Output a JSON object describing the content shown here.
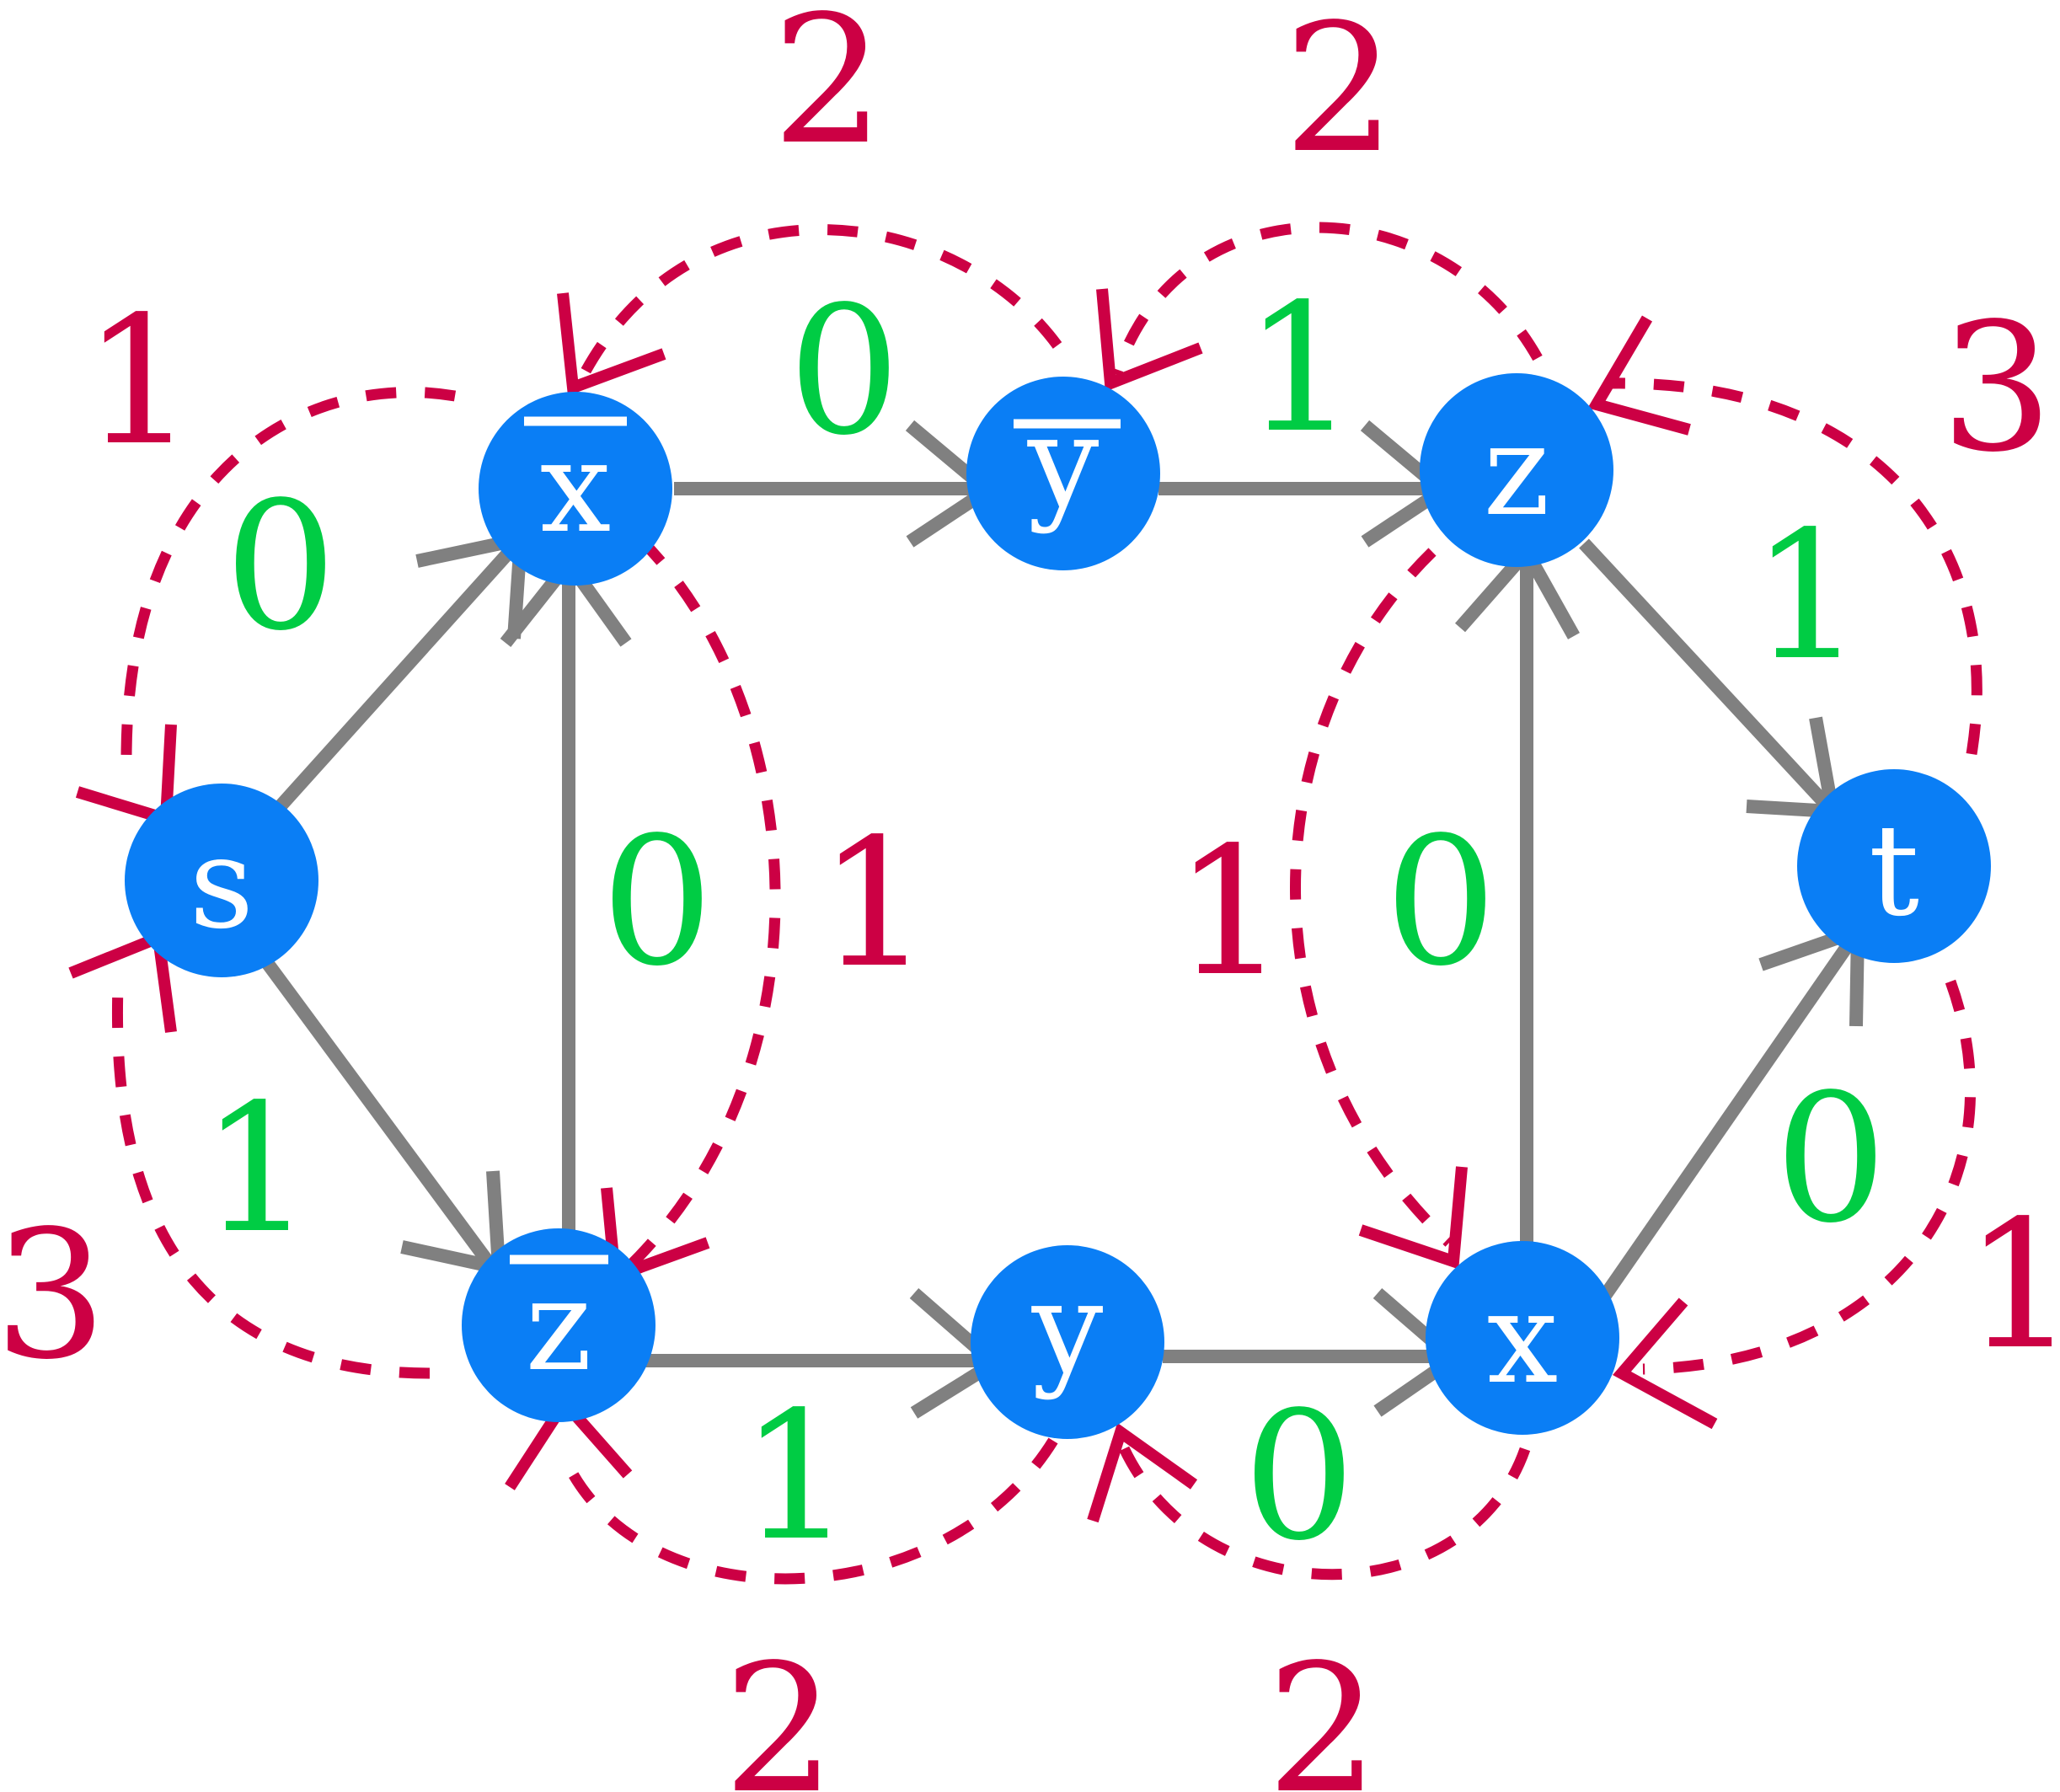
{
  "colors": {
    "node": "#0a7ef5",
    "primal_edge": "#808080",
    "dual_edge": "#cc0044",
    "primal_weight": "#00cc44",
    "dual_weight": "#cc0044"
  },
  "nodes": [
    {
      "id": "s",
      "label": "s",
      "overline": false
    },
    {
      "id": "xbar",
      "label": "x",
      "overline": true
    },
    {
      "id": "ybar",
      "label": "y",
      "overline": true
    },
    {
      "id": "z",
      "label": "z",
      "overline": false
    },
    {
      "id": "t",
      "label": "t",
      "overline": false
    },
    {
      "id": "zbar",
      "label": "z",
      "overline": true
    },
    {
      "id": "y",
      "label": "y",
      "overline": false
    },
    {
      "id": "x",
      "label": "x",
      "overline": false
    }
  ],
  "primal_weights": {
    "s_xbar": "0",
    "s_zbar": "1",
    "xbar_ybar": "0",
    "ybar_z": "1",
    "zbar_xbar": "0",
    "z_t": "1",
    "x_z": "0",
    "zbar_y": "1",
    "y_x": "0",
    "x_t": "0"
  },
  "dual_weights": {
    "top_left": "2",
    "top_right": "2",
    "upper_left": "1",
    "upper_right": "3",
    "left_mid": "1",
    "right_mid": "1",
    "lower_left": "3",
    "lower_right": "1",
    "bottom_left": "2",
    "bottom_right": "2"
  }
}
